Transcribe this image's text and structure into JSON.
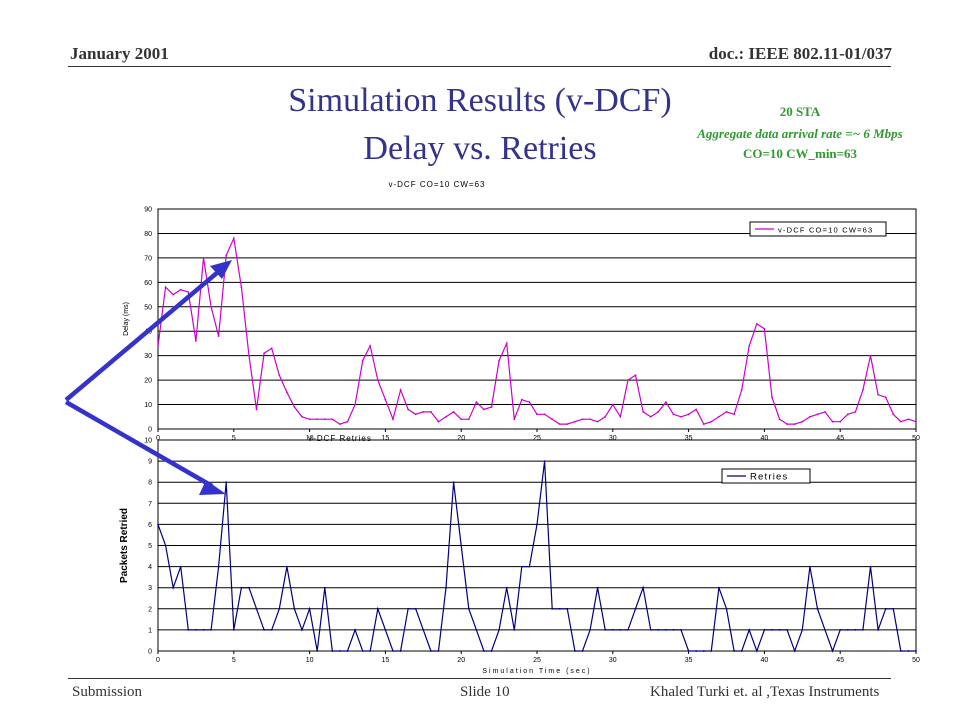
{
  "header": {
    "date": "January 2001",
    "doc": "doc.: IEEE 802.11-01/037"
  },
  "title": {
    "line1": "Simulation Results (v-DCF)",
    "line2": "Delay vs. Retries"
  },
  "notes": [
    "20 STA",
    "Aggregate data arrival rate =~ 6 Mbps",
    "CO=10 CW_min=63"
  ],
  "footer": {
    "left": "Submission",
    "middle": "Slide 10",
    "right": "Khaled Turki  et. al ,Texas Instruments"
  },
  "colors": {
    "delay_line": "#cc00cc",
    "retries_line": "#000080",
    "arrow": "#3333cc",
    "note": "#2f9a2f",
    "title": "#33338a"
  },
  "chart_data": [
    {
      "type": "line",
      "title": "v-DCF CO=10 CW=63",
      "subtitle": "v-DCF Retries",
      "xlabel": "",
      "ylabel": "Delay (ms)",
      "xlim": [
        0,
        50
      ],
      "ylim": [
        0,
        90
      ],
      "xticks": [
        0,
        5,
        10,
        15,
        20,
        25,
        30,
        35,
        40,
        45,
        50
      ],
      "yticks": [
        0,
        10,
        20,
        30,
        40,
        50,
        60,
        70,
        80,
        90
      ],
      "grid": true,
      "legend": "top-right",
      "series": [
        {
          "name": "v-DCF CO=10 CW=63",
          "color": "#cc00cc",
          "x": [
            0,
            0.5,
            1,
            1.5,
            2,
            2.5,
            3,
            3.5,
            4,
            4.5,
            5,
            5.5,
            6,
            6.5,
            7,
            7.5,
            8,
            8.5,
            9,
            9.5,
            10,
            10.5,
            11,
            11.5,
            12,
            12.5,
            13,
            13.5,
            14,
            14.5,
            15,
            15.5,
            16,
            16.5,
            17,
            17.5,
            18,
            18.5,
            19,
            19.5,
            20,
            20.5,
            21,
            21.5,
            22,
            22.5,
            23,
            23.5,
            24,
            24.5,
            25,
            25.5,
            26,
            26.5,
            27,
            27.5,
            28,
            28.5,
            29,
            29.5,
            30,
            30.5,
            31,
            31.5,
            32,
            32.5,
            33,
            33.5,
            34,
            34.5,
            35,
            35.5,
            36,
            36.5,
            37,
            37.5,
            38,
            38.5,
            39,
            39.5,
            40,
            40.5,
            41,
            41.5,
            42,
            42.5,
            43,
            43.5,
            44,
            44.5,
            45,
            45.5,
            46,
            46.5,
            47,
            47.5,
            48,
            48.5,
            49,
            49.5,
            50
          ],
          "y": [
            34,
            58,
            55,
            57,
            56,
            36,
            70,
            50,
            38,
            71,
            78,
            58,
            30,
            8,
            31,
            33,
            22,
            15,
            9,
            5,
            4,
            4,
            4,
            4,
            2,
            3,
            10,
            28,
            34,
            20,
            12,
            4,
            16,
            8,
            6,
            7,
            7,
            3,
            5,
            7,
            4,
            4,
            11,
            8,
            9,
            28,
            35,
            4,
            12,
            11,
            6,
            6,
            4,
            2,
            2,
            3,
            4,
            4,
            3,
            5,
            10,
            5,
            20,
            22,
            7,
            5,
            7,
            11,
            6,
            5,
            6,
            8,
            2,
            3,
            5,
            7,
            6,
            16,
            34,
            43,
            41,
            13,
            4,
            2,
            2,
            3,
            5,
            6,
            7,
            3,
            3,
            6,
            7,
            16,
            30,
            14,
            13,
            6,
            3,
            4,
            3
          ]
        }
      ]
    },
    {
      "type": "line",
      "title": "",
      "xlabel": "Simulation Time (sec)",
      "ylabel": "Packets Retried",
      "xlim": [
        0,
        50
      ],
      "ylim": [
        0,
        10
      ],
      "xticks": [
        0,
        5,
        10,
        15,
        20,
        25,
        30,
        35,
        40,
        45,
        50
      ],
      "yticks": [
        0,
        1,
        2,
        3,
        4,
        5,
        6,
        7,
        8,
        9,
        10
      ],
      "grid": true,
      "legend": "top-right",
      "series": [
        {
          "name": "Retries",
          "color": "#000080",
          "x": [
            0,
            0.5,
            1,
            1.5,
            2,
            2.5,
            3,
            3.5,
            4,
            4.5,
            5,
            5.5,
            6,
            6.5,
            7,
            7.5,
            8,
            8.5,
            9,
            9.5,
            10,
            10.5,
            11,
            11.5,
            12,
            12.5,
            13,
            13.5,
            14,
            14.5,
            15,
            15.5,
            16,
            16.5,
            17,
            17.5,
            18,
            18.5,
            19,
            19.5,
            20,
            20.5,
            21,
            21.5,
            22,
            22.5,
            23,
            23.5,
            24,
            24.5,
            25,
            25.5,
            26,
            26.5,
            27,
            27.5,
            28,
            28.5,
            29,
            29.5,
            30,
            30.5,
            31,
            31.5,
            32,
            32.5,
            33,
            33.5,
            34,
            34.5,
            35,
            35.5,
            36,
            36.5,
            37,
            37.5,
            38,
            38.5,
            39,
            39.5,
            40,
            40.5,
            41,
            41.5,
            42,
            42.5,
            43,
            43.5,
            44,
            44.5,
            45,
            45.5,
            46,
            46.5,
            47,
            47.5,
            48,
            48.5,
            49,
            49.5,
            50
          ],
          "y": [
            6,
            5,
            3,
            4,
            1,
            1,
            1,
            1,
            4,
            8,
            1,
            3,
            3,
            2,
            1,
            1,
            2,
            4,
            2,
            1,
            2,
            0,
            3,
            0,
            0,
            0,
            1,
            0,
            0,
            2,
            1,
            0,
            0,
            2,
            2,
            1,
            0,
            0,
            3,
            8,
            5,
            2,
            1,
            0,
            0,
            1,
            3,
            1,
            4,
            4,
            6,
            9,
            2,
            2,
            2,
            0,
            0,
            1,
            3,
            1,
            1,
            1,
            1,
            2,
            3,
            1,
            1,
            1,
            1,
            1,
            0,
            0,
            0,
            0,
            3,
            2,
            0,
            0,
            1,
            0,
            1,
            1,
            1,
            1,
            0,
            1,
            4,
            2,
            1,
            0,
            1,
            1,
            1,
            1,
            4,
            1,
            2,
            2,
            0,
            0,
            0
          ]
        }
      ]
    }
  ]
}
